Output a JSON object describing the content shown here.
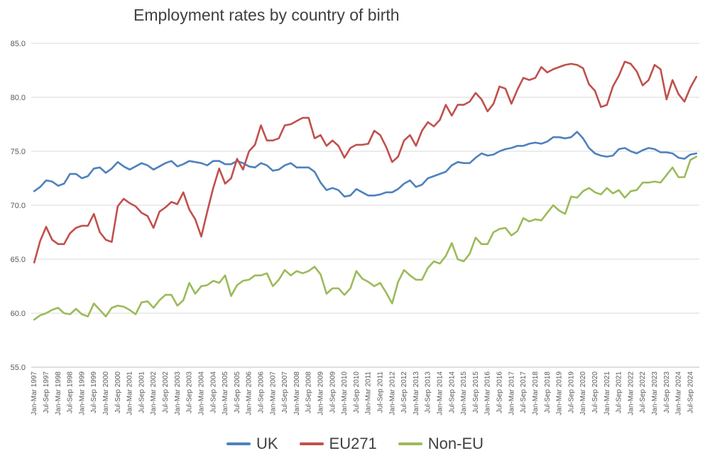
{
  "chart_data": {
    "type": "line",
    "title": "Employment rates by country of birth",
    "xlabel": "",
    "ylabel": "",
    "ylim": [
      55.0,
      85.0
    ],
    "yticks": [
      "55.0",
      "60.0",
      "65.0",
      "70.0",
      "75.0",
      "80.0",
      "85.0"
    ],
    "grid": true,
    "legend_position": "bottom",
    "x": [
      "Jan-Mar 1997",
      "Apr-Jun 1997",
      "Jul-Sep 1997",
      "Oct-Dec 1997",
      "Jan-Mar 1998",
      "Apr-Jun 1998",
      "Jul-Sep 1998",
      "Oct-Dec 1998",
      "Jan-Mar 1999",
      "Apr-Jun 1999",
      "Jul-Sep 1999",
      "Oct-Dec 1999",
      "Jan-Mar 2000",
      "Apr-Jun 2000",
      "Jul-Sep 2000",
      "Oct-Dec 2000",
      "Jan-Mar 2001",
      "Apr-Jun 2001",
      "Jul-Sep 2001",
      "Oct-Dec 2001",
      "Jan-Mar 2002",
      "Apr-Jun 2002",
      "Jul-Sep 2002",
      "Oct-Dec 2002",
      "Jan-Mar 2003",
      "Apr-Jun 2003",
      "Jul-Sep 2003",
      "Oct-Dec 2003",
      "Jan-Mar 2004",
      "Apr-Jun 2004",
      "Jul-Sep 2004",
      "Oct-Dec 2004",
      "Jan-Mar 2005",
      "Apr-Jun 2005",
      "Jul-Sep 2005",
      "Oct-Dec 2005",
      "Jan-Mar 2006",
      "Apr-Jun 2006",
      "Jul-Sep 2006",
      "Oct-Dec 2006",
      "Jan-Mar 2007",
      "Apr-Jun 2007",
      "Jul-Sep 2007",
      "Oct-Dec 2007",
      "Jan-Mar 2008",
      "Apr-Jun 2008",
      "Jul-Sep 2008",
      "Oct-Dec 2008",
      "Jan-Mar 2009",
      "Apr-Jun 2009",
      "Jul-Sep 2009",
      "Oct-Dec 2009",
      "Jan-Mar 2010",
      "Apr-Jun 2010",
      "Jul-Sep 2010",
      "Oct-Dec 2010",
      "Jan-Mar 2011",
      "Apr-Jun 2011",
      "Jul-Sep 2011",
      "Oct-Dec 2011",
      "Jan-Mar 2012",
      "Apr-Jun 2012",
      "Jul-Sep 2012",
      "Oct-Dec 2012",
      "Jan-Mar 2013",
      "Apr-Jun 2013",
      "Jul-Sep 2013",
      "Oct-Dec 2013",
      "Jan-Mar 2014",
      "Apr-Jun 2014",
      "Jul-Sep 2014",
      "Oct-Dec 2014",
      "Jan-Mar 2015",
      "Apr-Jun 2015",
      "Jul-Sep 2015",
      "Oct-Dec 2015",
      "Jan-Mar 2016",
      "Apr-Jun 2016",
      "Jul-Sep 2016",
      "Oct-Dec 2016",
      "Jan-Mar 2017",
      "Apr-Jun 2017",
      "Jul-Sep 2017",
      "Oct-Dec 2017",
      "Jan-Mar 2018",
      "Apr-Jun 2018",
      "Jul-Sep 2018",
      "Oct-Dec 2018",
      "Jan-Mar 2019",
      "Apr-Jun 2019",
      "Jul-Sep 2019",
      "Oct-Dec 2019",
      "Jan-Mar 2020",
      "Apr-Jun 2020",
      "Jul-Sep 2020",
      "Oct-Dec 2020",
      "Jan-Mar 2021",
      "Apr-Jun 2021",
      "Jul-Sep 2021",
      "Oct-Dec 2021",
      "Jan-Mar 2022",
      "Apr-Jun 2022",
      "Jul-Sep 2022",
      "Oct-Dec 2022",
      "Jan-Mar 2023",
      "Apr-Jun 2023",
      "Jul-Sep 2023",
      "Oct-Dec 2023",
      "Jan-Mar 2024",
      "Apr-Jun 2024",
      "Jul-Sep 2024",
      "Oct-Dec 2024"
    ],
    "xtick_labels_every": 2,
    "series": [
      {
        "name": "UK",
        "color": "#4f81bd",
        "values": [
          71.3,
          71.7,
          72.3,
          72.2,
          71.8,
          72.0,
          72.9,
          72.9,
          72.5,
          72.7,
          73.4,
          73.5,
          73.0,
          73.4,
          74.0,
          73.6,
          73.3,
          73.6,
          73.9,
          73.7,
          73.3,
          73.6,
          73.9,
          74.1,
          73.6,
          73.8,
          74.1,
          74.0,
          73.9,
          73.7,
          74.1,
          74.1,
          73.8,
          73.8,
          74.1,
          73.9,
          73.6,
          73.5,
          73.9,
          73.7,
          73.2,
          73.3,
          73.7,
          73.9,
          73.5,
          73.5,
          73.5,
          73.1,
          72.1,
          71.4,
          71.6,
          71.4,
          70.8,
          70.9,
          71.5,
          71.2,
          70.9,
          70.9,
          71.0,
          71.2,
          71.2,
          71.5,
          72.0,
          72.3,
          71.7,
          71.9,
          72.5,
          72.7,
          72.9,
          73.1,
          73.7,
          74.0,
          73.9,
          73.9,
          74.4,
          74.8,
          74.6,
          74.7,
          75.0,
          75.2,
          75.3,
          75.5,
          75.5,
          75.7,
          75.8,
          75.7,
          75.9,
          76.3,
          76.3,
          76.2,
          76.3,
          76.8,
          76.2,
          75.3,
          74.8,
          74.6,
          74.5,
          74.6,
          75.2,
          75.3,
          75.0,
          74.8,
          75.1,
          75.3,
          75.2,
          74.9,
          74.9,
          74.8,
          74.4,
          74.3,
          74.7,
          74.8
        ]
      },
      {
        "name": "EU271",
        "color": "#c0504d",
        "values": [
          64.7,
          66.7,
          68.0,
          66.8,
          66.4,
          66.4,
          67.4,
          67.9,
          68.1,
          68.1,
          69.2,
          67.5,
          66.8,
          66.6,
          69.9,
          70.6,
          70.2,
          69.9,
          69.3,
          69.0,
          67.9,
          69.4,
          69.8,
          70.3,
          70.1,
          71.2,
          69.6,
          68.7,
          67.1,
          69.4,
          71.6,
          73.4,
          72.0,
          72.5,
          74.3,
          73.3,
          75.0,
          75.6,
          77.4,
          76.0,
          76.0,
          76.2,
          77.4,
          77.5,
          77.8,
          78.1,
          78.1,
          76.2,
          76.5,
          75.5,
          76.0,
          75.5,
          74.4,
          75.3,
          75.6,
          75.6,
          75.7,
          76.9,
          76.5,
          75.4,
          74.0,
          74.5,
          76.0,
          76.5,
          75.5,
          76.9,
          77.7,
          77.3,
          77.9,
          79.3,
          78.3,
          79.3,
          79.3,
          79.6,
          80.4,
          79.8,
          78.7,
          79.4,
          81.0,
          80.8,
          79.4,
          80.7,
          81.8,
          81.6,
          81.8,
          82.8,
          82.3,
          82.6,
          82.8,
          83.0,
          83.1,
          83.0,
          82.7,
          81.2,
          80.6,
          79.1,
          79.3,
          81.0,
          82.0,
          83.3,
          83.1,
          82.4,
          81.1,
          81.6,
          83.0,
          82.6,
          79.8,
          81.6,
          80.3,
          79.6,
          80.9,
          81.9
        ]
      },
      {
        "name": "Non-EU",
        "color": "#9bbb59",
        "values": [
          59.4,
          59.8,
          60.0,
          60.3,
          60.5,
          60.0,
          59.9,
          60.4,
          59.9,
          59.7,
          60.9,
          60.3,
          59.7,
          60.5,
          60.7,
          60.6,
          60.3,
          59.9,
          61.0,
          61.1,
          60.5,
          61.2,
          61.7,
          61.7,
          60.7,
          61.2,
          62.8,
          61.8,
          62.5,
          62.6,
          63.0,
          62.8,
          63.5,
          61.6,
          62.6,
          63.0,
          63.1,
          63.5,
          63.5,
          63.7,
          62.5,
          63.1,
          64.0,
          63.5,
          63.9,
          63.7,
          63.9,
          64.3,
          63.6,
          61.8,
          62.3,
          62.3,
          61.7,
          62.3,
          63.9,
          63.2,
          62.9,
          62.5,
          62.8,
          61.9,
          60.9,
          62.9,
          64.0,
          63.5,
          63.1,
          63.1,
          64.2,
          64.8,
          64.6,
          65.3,
          66.5,
          65.0,
          64.8,
          65.5,
          67.0,
          66.4,
          66.4,
          67.5,
          67.8,
          67.9,
          67.2,
          67.6,
          68.8,
          68.5,
          68.7,
          68.6,
          69.3,
          70.0,
          69.5,
          69.2,
          70.8,
          70.7,
          71.3,
          71.6,
          71.2,
          71.0,
          71.6,
          71.1,
          71.4,
          70.7,
          71.3,
          71.4,
          72.1,
          72.1,
          72.2,
          72.1,
          72.8,
          73.5,
          72.6,
          72.6,
          74.2,
          74.5
        ]
      }
    ]
  }
}
